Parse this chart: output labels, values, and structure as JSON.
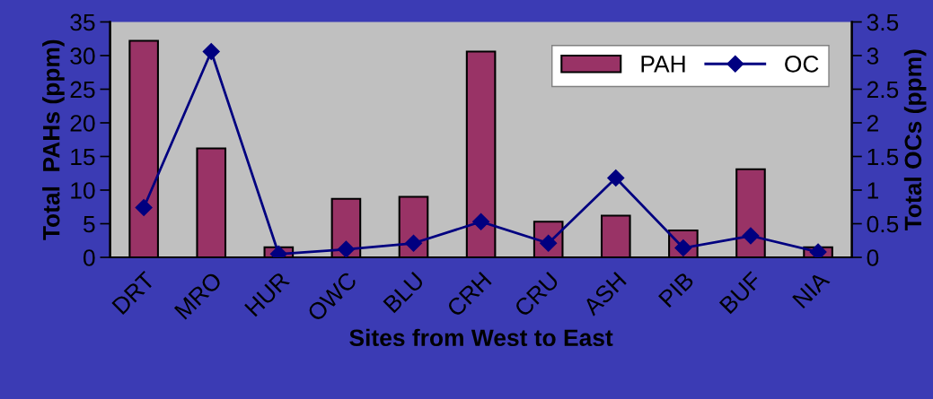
{
  "chart_data": {
    "type": "bar",
    "xlabel": "Sites from West to East",
    "ylabel": "Total  PAHs (ppm)",
    "y2label": "Total OCs (ppm)",
    "categories": [
      "DRT",
      "MRO",
      "HUR",
      "OWC",
      "BLU",
      "CRH",
      "CRU",
      "ASH",
      "PIB",
      "BUF",
      "NIA"
    ],
    "series": [
      {
        "name": "PAH",
        "color": "#993366",
        "values": [
          32.2,
          16.2,
          1.5,
          8.7,
          9.0,
          30.6,
          5.3,
          6.2,
          4.0,
          13.1,
          1.5
        ]
      },
      {
        "name": "OC",
        "type": "line",
        "axis": "y2",
        "color": "#000080",
        "marker": "diamond",
        "values": [
          0.74,
          3.06,
          0.05,
          0.12,
          0.21,
          0.53,
          0.21,
          1.18,
          0.14,
          0.32,
          0.08
        ]
      }
    ],
    "ylim": [
      0,
      35
    ],
    "yticks": [
      0,
      5,
      10,
      15,
      20,
      25,
      30,
      35
    ],
    "y2lim": [
      0,
      3.5
    ],
    "y2ticks": [
      0,
      0.5,
      1,
      {
        "value": 1.5,
        "label": "1.5"
      },
      2,
      {
        "value": 2.5,
        "label": "2.5"
      },
      3,
      {
        "value": 3.5,
        "label": "3.5"
      }
    ],
    "legend": "top right",
    "grid": false
  }
}
